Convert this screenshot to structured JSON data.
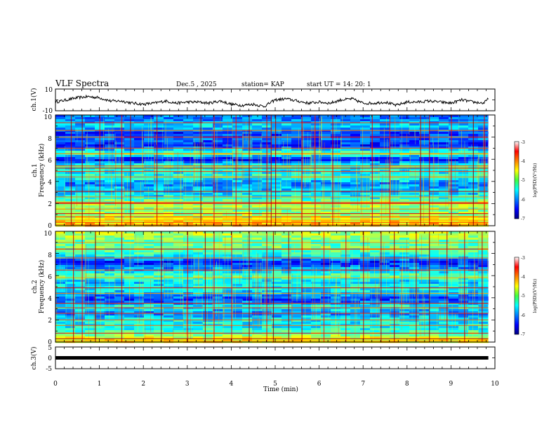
{
  "header": {
    "title": "VLF Spectra",
    "date": "Dec.5 , 2025",
    "station": "station= KAP",
    "start": "start UT = 14: 20: 1"
  },
  "chart_data": [
    {
      "type": "line",
      "id": "ch1_waveform",
      "ylabel": "ch.1(V)",
      "ylim": [
        -10,
        10
      ],
      "y_ticks": [
        "10",
        "-10"
      ],
      "xlim": [
        0,
        10
      ],
      "x": [
        0,
        0.25,
        0.5,
        0.75,
        1,
        1.25,
        1.5,
        1.75,
        2,
        2.25,
        2.5,
        2.75,
        3,
        3.25,
        3.5,
        3.75,
        4,
        4.25,
        4.5,
        4.75,
        5,
        5.25,
        5.5,
        5.75,
        6,
        6.25,
        6.5,
        6.75,
        7,
        7.25,
        7.5,
        7.75,
        8,
        8.25,
        8.5,
        8.75,
        9,
        9.25,
        9.5,
        9.75,
        9.85
      ],
      "values": [
        -2,
        0,
        2,
        3,
        2,
        -1,
        -1,
        -3,
        -4,
        -3,
        -1,
        -3,
        -2,
        -2,
        -3,
        -1,
        -4,
        -5,
        -4,
        -6,
        0,
        1,
        -1,
        -3,
        -2,
        -3,
        0,
        1,
        -3,
        -3,
        -2,
        -5,
        -2,
        -2,
        -1,
        -2,
        -3,
        0,
        -2,
        -3,
        1
      ]
    },
    {
      "type": "heatmap",
      "id": "ch1_spectrogram",
      "ylabel": "ch.1\nFrequency (kHz)",
      "ylim": [
        0,
        10
      ],
      "y_ticks": [
        "0",
        "2",
        "4",
        "6",
        "8",
        "10"
      ],
      "xlim": [
        0,
        9.85
      ],
      "colorbar": {
        "label": "log(PSD)(V²/Hz)",
        "range": [
          -7,
          -3
        ],
        "ticks": [
          "-3",
          "-4",
          "-5",
          "-6",
          "-7"
        ]
      },
      "freq_profile": {
        "freq_khz": [
          0.3,
          0.8,
          1.4,
          2.0,
          2.6,
          3.2,
          3.8,
          4.4,
          4.9,
          5.4,
          6.0,
          6.5,
          7.2,
          7.8,
          8.4,
          9.0,
          9.6
        ],
        "log_psd": [
          -4.3,
          -4.8,
          -5.0,
          -4.8,
          -5.5,
          -5.7,
          -6.0,
          -5.3,
          -5.6,
          -5.2,
          -6.6,
          -5.0,
          -6.4,
          -6.1,
          -6.3,
          -5.6,
          -6.0
        ]
      },
      "lines_khz": [
        0.1,
        0.3,
        0.5,
        0.8,
        1.1,
        1.5,
        2.0,
        2.1,
        2.6,
        3.1,
        4.4,
        4.9,
        5.2,
        5.4,
        6.5,
        7.0,
        8.0,
        8.6,
        9.3
      ],
      "impulse_times_min": [
        0.35,
        0.6,
        1.0,
        1.5,
        1.7,
        2.3,
        3.3,
        3.6,
        4.1,
        4.4,
        4.8,
        4.9,
        5.0,
        5.6,
        5.9,
        6.3,
        7.2,
        7.6,
        8.3,
        8.5,
        9.0,
        9.5,
        9.75
      ]
    },
    {
      "type": "heatmap",
      "id": "ch2_spectrogram",
      "ylabel": "ch.2\nFrequency (kHz)",
      "ylim": [
        0,
        10
      ],
      "y_ticks": [
        "0",
        "2",
        "4",
        "6",
        "8",
        "10"
      ],
      "xlim": [
        0,
        9.85
      ],
      "colorbar": {
        "label": "log(PSD)(V²/Hz)",
        "range": [
          -7,
          -3
        ],
        "ticks": [
          "-3",
          "-4",
          "-5",
          "-6",
          "-7"
        ]
      },
      "freq_profile": {
        "freq_khz": [
          0.3,
          0.8,
          1.4,
          2.0,
          2.6,
          3.2,
          3.8,
          4.4,
          4.9,
          5.4,
          6.0,
          6.5,
          7.2,
          7.8,
          8.4,
          9.0,
          9.6
        ],
        "log_psd": [
          -4.5,
          -5.2,
          -5.5,
          -5.5,
          -6.0,
          -5.4,
          -6.3,
          -5.8,
          -5.4,
          -5.7,
          -5.1,
          -5.8,
          -6.4,
          -5.5,
          -5.0,
          -5.2,
          -4.8
        ]
      },
      "lines_khz": [
        0.1,
        0.3,
        0.8,
        1.5,
        2.0,
        2.6,
        3.1,
        3.5,
        4.4,
        4.9,
        5.8,
        6.5,
        7.6,
        8.4,
        9.0
      ],
      "impulse_times_min": [
        0.4,
        0.6,
        0.9,
        1.5,
        2.4,
        3.0,
        3.4,
        3.6,
        4.0,
        4.4,
        4.8,
        4.95,
        5.3,
        5.6,
        6.1,
        6.6,
        7.0,
        7.4,
        7.7,
        8.2,
        8.5,
        8.9,
        9.3,
        9.7
      ]
    },
    {
      "type": "line",
      "id": "ch3_waveform",
      "ylabel": "ch.3(V)",
      "ylim": [
        -5,
        5
      ],
      "y_ticks": [
        "5",
        "0",
        "-5"
      ],
      "xlim": [
        0,
        10
      ],
      "x": [
        0,
        9.85
      ],
      "values": [
        0,
        0
      ],
      "xlabel": "Time (min)",
      "x_ticks": [
        "0",
        "1",
        "2",
        "3",
        "4",
        "5",
        "6",
        "7",
        "8",
        "9",
        "10"
      ]
    }
  ]
}
